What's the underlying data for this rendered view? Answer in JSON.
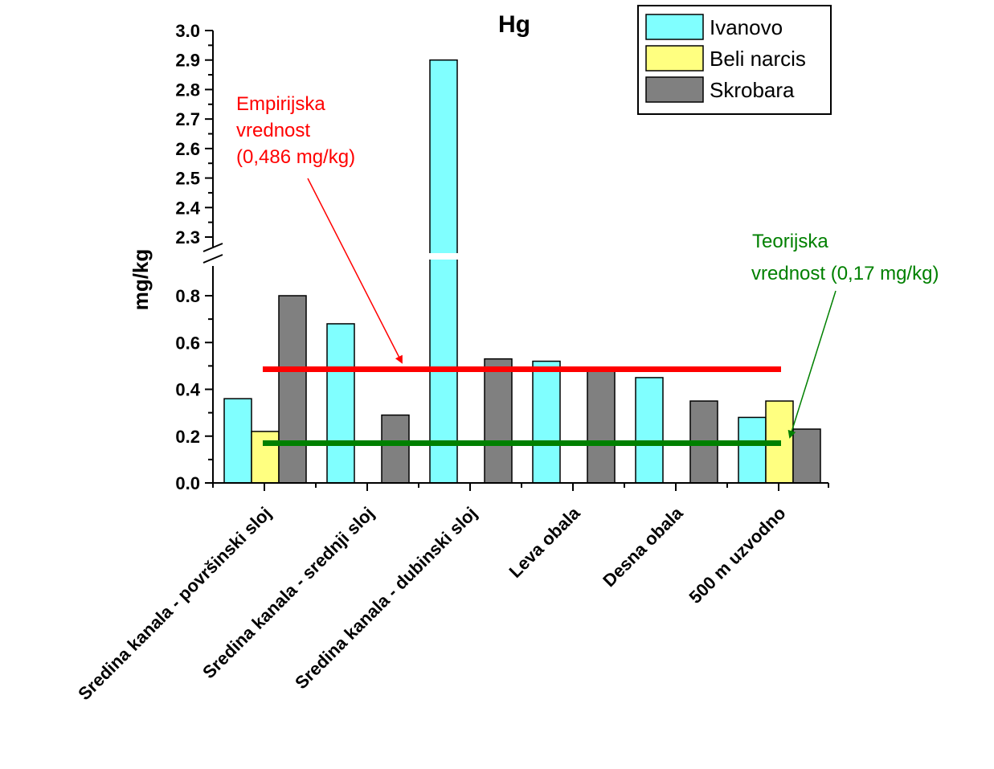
{
  "chart_data": {
    "type": "bar",
    "title": "Hg",
    "ylabel": "mg/kg",
    "xlabel": "",
    "categories": [
      "Sredina kanala - površinski sloj",
      "Sredina kanala - srednji sloj",
      "Sredina kanala - dubinski sloj",
      "Leva obala",
      "Desna obala",
      "500 m uzvodno"
    ],
    "series": [
      {
        "name": "Ivanovo",
        "color": "#80FFFF",
        "values": [
          0.36,
          0.68,
          2.9,
          0.52,
          0.45,
          0.28
        ]
      },
      {
        "name": "Beli narcis",
        "color": "#FFFF80",
        "values": [
          0.22,
          null,
          null,
          null,
          null,
          0.35
        ]
      },
      {
        "name": "Skrobara",
        "color": "#808080",
        "values": [
          0.8,
          0.29,
          0.53,
          0.49,
          0.35,
          0.23
        ]
      }
    ],
    "y_axis_break": [
      0.8,
      2.3
    ],
    "ylim_lower": [
      0,
      0.8
    ],
    "ylim_upper": [
      2.3,
      3.0
    ],
    "yticks_lower": [
      "0.0",
      "0.2",
      "0.4",
      "0.6",
      "0.8"
    ],
    "yticks_upper": [
      "2.3",
      "2.4",
      "2.5",
      "2.6",
      "2.7",
      "2.8",
      "2.9",
      "3.0"
    ],
    "legend_position": "top-right",
    "reference_lines": [
      {
        "value": 0.486,
        "color": "#FF0000",
        "label_lines": [
          "Empirijska",
          "vrednost",
          "(0,486 mg/kg)"
        ]
      },
      {
        "value": 0.17,
        "color": "#008000",
        "label_lines": [
          "Teorijska",
          "vrednost (0,17 mg/kg)"
        ]
      }
    ]
  }
}
